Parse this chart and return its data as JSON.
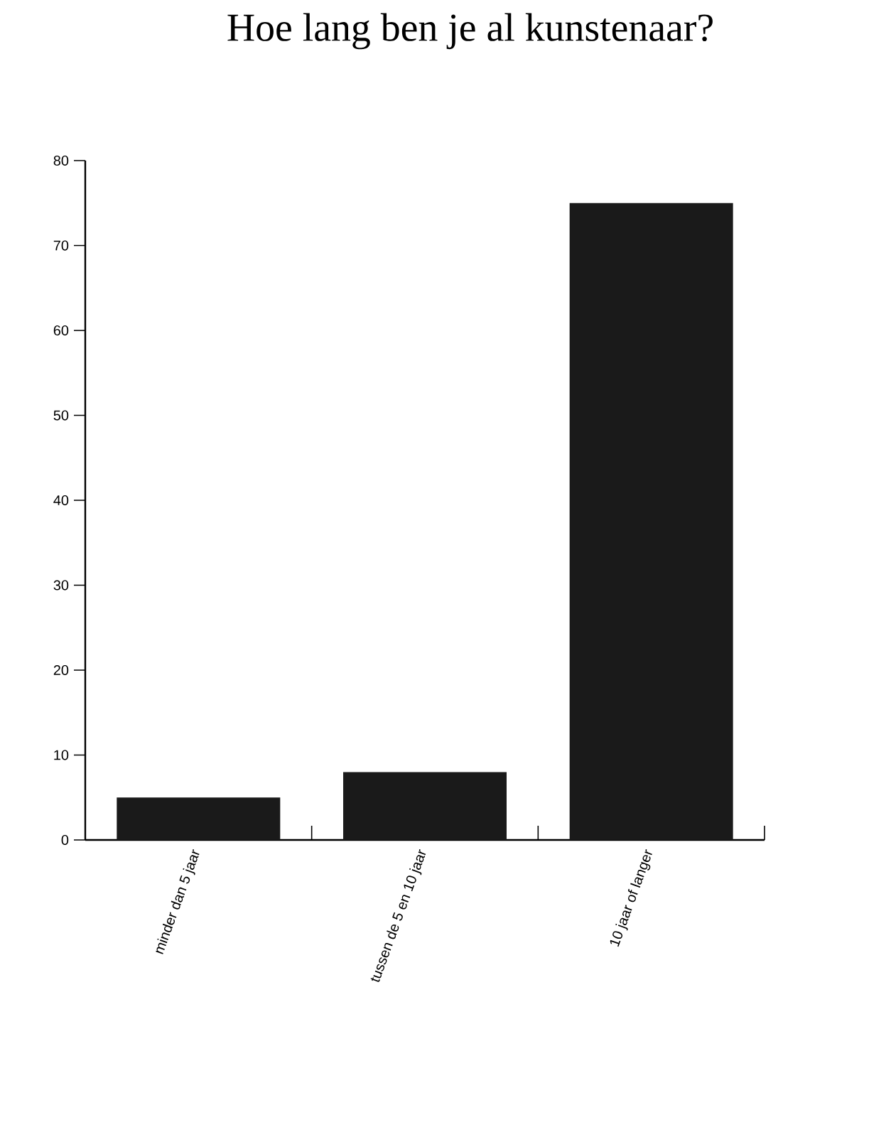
{
  "chart_data": {
    "type": "bar",
    "title": "Hoe lang ben je al kunstenaar?",
    "categories": [
      "minder dan 5 jaar",
      "tussen de 5 en 10 jaar",
      "10 jaar of langer"
    ],
    "values": [
      5,
      8,
      75
    ],
    "color": "#1a1a1a",
    "ylim": [
      0,
      80
    ],
    "yticks": [
      0,
      10,
      20,
      30,
      40,
      50,
      60,
      70,
      80
    ]
  }
}
